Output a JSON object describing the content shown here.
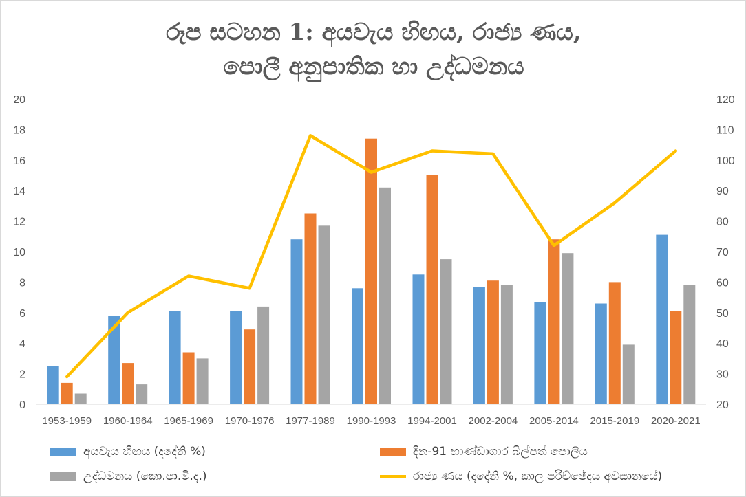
{
  "chart_data": {
    "type": "bar+line",
    "title_line1": "රූප සටහන 1: අයවැය හිඟය, රාජ්‍ය ණය,",
    "title_line2": "පොලී අනුපාතික හා උද්ධමනය",
    "categories": [
      "1953-1959",
      "1960-1964",
      "1965-1969",
      "1970-1976",
      "1977-1989",
      "1990-1993",
      "1994-2001",
      "2002-2004",
      "2005-2014",
      "2015-2019",
      "2020-2021"
    ],
    "series": [
      {
        "name": "අයවැය හිඟය (දදේනි %)",
        "type": "bar",
        "axis": "left",
        "color": "#5b9bd5",
        "values": [
          2.5,
          5.8,
          6.1,
          6.1,
          10.8,
          7.6,
          8.5,
          7.7,
          6.7,
          6.6,
          11.1
        ]
      },
      {
        "name": "දින-91 භාණ්ඩාගාර බිල්පත් පොලිය",
        "type": "bar",
        "axis": "left",
        "color": "#ed7d31",
        "values": [
          1.4,
          2.7,
          3.4,
          4.9,
          12.5,
          17.4,
          15.0,
          8.1,
          10.8,
          8.0,
          6.1
        ]
      },
      {
        "name": "උද්ධමනය (කො.පා.මි.ද.)",
        "type": "bar",
        "axis": "left",
        "color": "#a5a5a5",
        "values": [
          0.7,
          1.3,
          3.0,
          6.4,
          11.7,
          14.2,
          9.5,
          7.8,
          9.9,
          3.9,
          7.8
        ]
      },
      {
        "name": "රාජ්‍ය ණය (දදේනි %, කාල පරිච්ඡේදය අවසානයේ)",
        "type": "line",
        "axis": "right",
        "color": "#ffc000",
        "values": [
          29,
          50,
          62,
          58,
          108,
          96,
          103,
          102,
          72,
          86,
          103
        ]
      }
    ],
    "y_left": {
      "min": 0,
      "max": 20,
      "ticks": [
        "0",
        "2",
        "4",
        "6",
        "8",
        "10",
        "12",
        "14",
        "16",
        "18",
        "20"
      ]
    },
    "y_right": {
      "min": 20,
      "max": 120,
      "ticks": [
        "20",
        "30",
        "40",
        "50",
        "60",
        "70",
        "80",
        "90",
        "100",
        "110",
        "120"
      ]
    },
    "grid": false
  }
}
